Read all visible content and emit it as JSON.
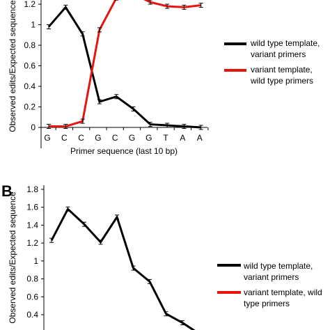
{
  "chart_data": [
    {
      "panel_label": "",
      "type": "line",
      "xlabel": "Primer sequence (last 10 bp)",
      "ylabel": "Observed edits/Expected sequence",
      "categories": [
        "G",
        "C",
        "C",
        "G",
        "C",
        "G",
        "G",
        "T",
        "A",
        "A"
      ],
      "yticks": [
        "0",
        "0.2",
        "0.4",
        "0.6",
        "0.8",
        "1",
        "1.2"
      ],
      "ylim": [
        0,
        1.2
      ],
      "series": [
        {
          "name": "wild type template, variant primers",
          "legend_lines": [
            "wild type template,",
            "variant primers"
          ],
          "color": "#000000",
          "values": [
            0.98,
            1.17,
            0.91,
            0.25,
            0.3,
            0.18,
            0.03,
            0.02,
            0.01,
            0.0
          ]
        },
        {
          "name": "variant template, wild type primers",
          "legend_lines": [
            "variant template,",
            "wild type primers"
          ],
          "color": "#e8140f",
          "values": [
            0.01,
            0.01,
            0.06,
            0.95,
            1.26,
            1.3,
            1.22,
            1.18,
            1.17,
            1.19
          ]
        }
      ]
    },
    {
      "panel_label": "B",
      "type": "line",
      "ylabel": "Observed edits/Expected sequence",
      "yticks": [
        "0.4",
        "0.6",
        "0.8",
        "1",
        "1.2",
        "1.4",
        "1.6",
        "1.8"
      ],
      "ylim": [
        0.4,
        1.8
      ],
      "series": [
        {
          "name": "wild type template, variant primers",
          "legend_lines": [
            "wild type template,",
            "variant primers"
          ],
          "color": "#000000",
          "values": [
            1.23,
            1.58,
            1.41,
            1.21,
            1.49,
            0.92,
            0.77,
            0.41,
            0.31,
            0.19
          ]
        },
        {
          "name": "variant template, wild type primers",
          "legend_lines": [
            "variant template, wild",
            "type primers"
          ],
          "color": "#e8140f",
          "values": []
        }
      ]
    }
  ]
}
